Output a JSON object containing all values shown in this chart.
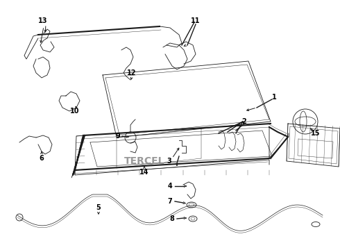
{
  "bg_color": "#ffffff",
  "line_color": "#1a1a1a",
  "fig_width": 4.9,
  "fig_height": 3.6,
  "dpi": 100,
  "xlim": [
    0,
    490
  ],
  "ylim": [
    0,
    360
  ]
}
